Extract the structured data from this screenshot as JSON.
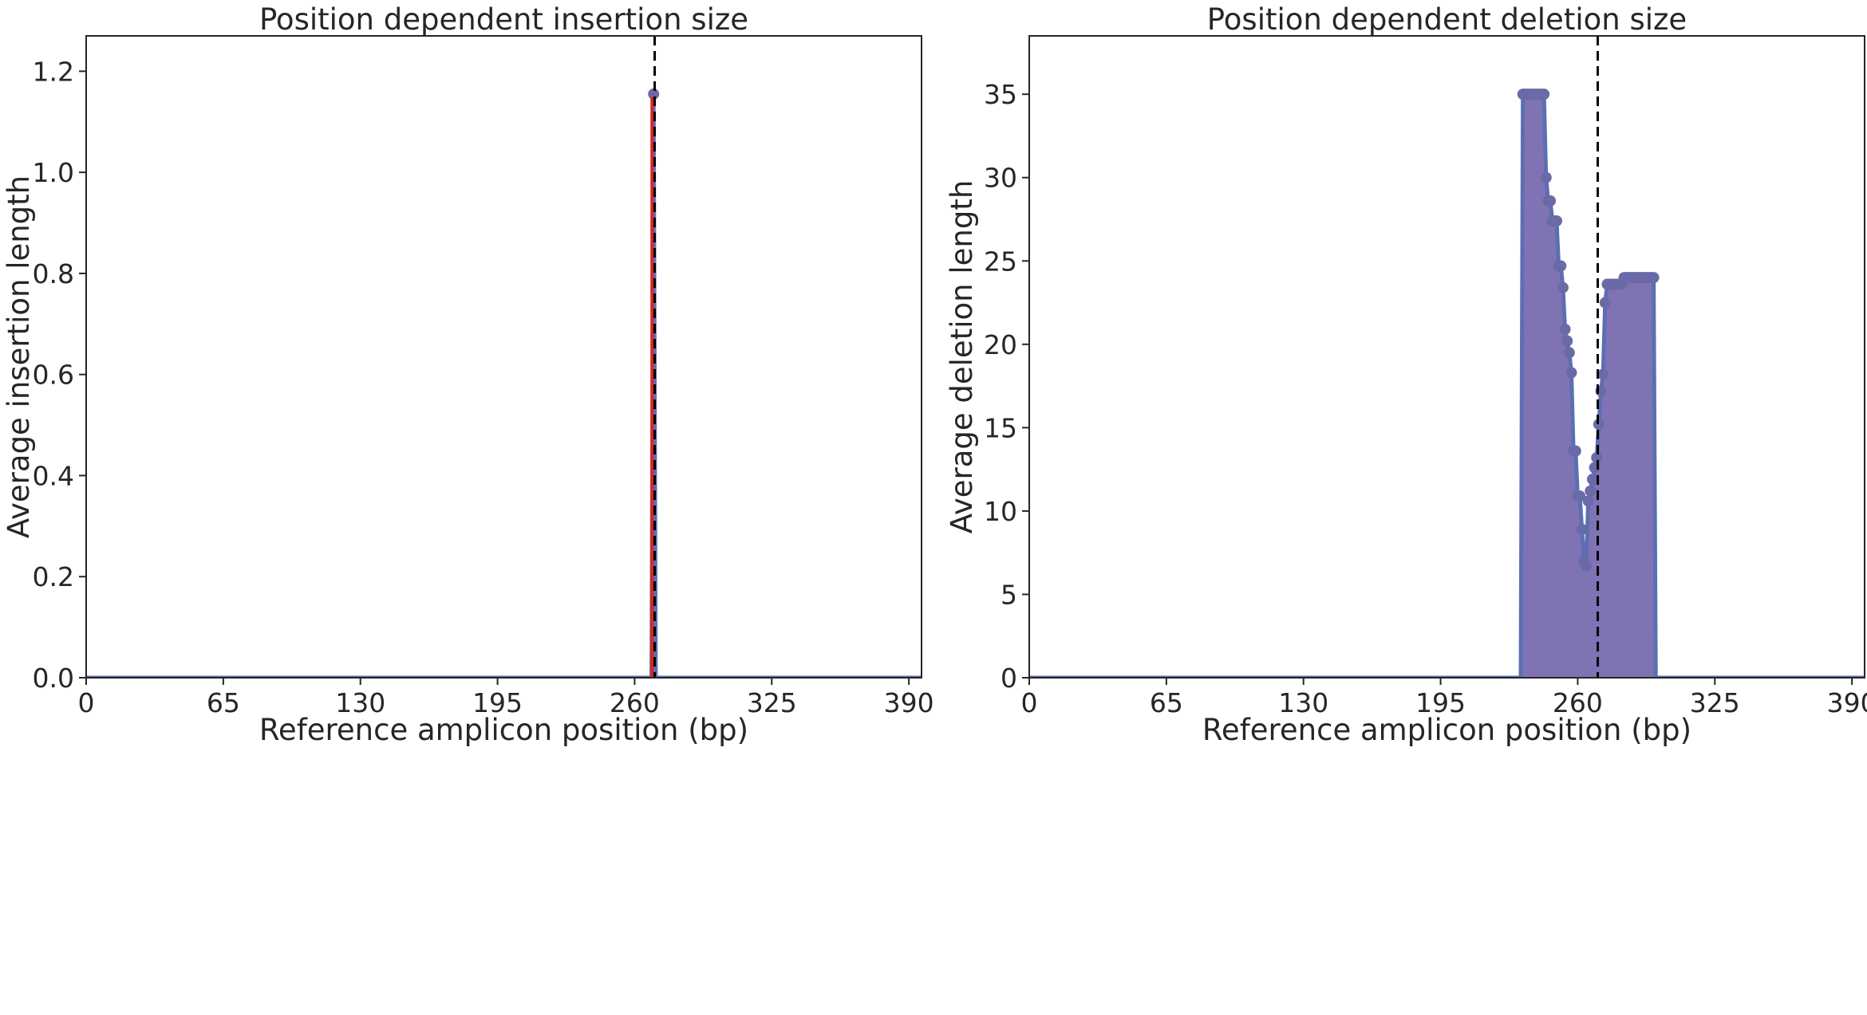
{
  "chart_data": [
    {
      "type": "line",
      "title": "Position dependent insertion size",
      "xlabel": "Reference amplicon position (bp)",
      "ylabel": "Average insertion length",
      "xlim": [
        0,
        396
      ],
      "ylim": [
        0,
        1.27
      ],
      "xticks": [
        0,
        65,
        130,
        195,
        260,
        325,
        390
      ],
      "xtick_labels": [
        "0",
        "65",
        "130",
        "195",
        "260",
        "325",
        "390"
      ],
      "yticks": [
        0.0,
        0.2,
        0.4,
        0.6,
        0.8,
        1.0,
        1.2
      ],
      "ytick_labels": [
        "0.0",
        "0.2",
        "0.4",
        "0.6",
        "0.8",
        "1.0",
        "1.2"
      ],
      "cut_site": 269.5,
      "grid": false,
      "colors": {
        "fill": "#8073b4",
        "line": "#5b6fb2",
        "marker": "#6a6aa8",
        "highlight": "#d62728",
        "cut_line": "#000000"
      },
      "series": [
        {
          "x": [
            0,
            268,
            269,
            270,
            396
          ],
          "y": [
            0,
            0,
            1.155,
            0,
            0
          ]
        }
      ]
    },
    {
      "type": "area",
      "title": "Position dependent deletion size",
      "xlabel": "Reference amplicon position (bp)",
      "ylabel": "Average deletion length",
      "xlim": [
        0,
        396
      ],
      "ylim": [
        0,
        38.5
      ],
      "xticks": [
        0,
        65,
        130,
        195,
        260,
        325,
        390
      ],
      "xtick_labels": [
        "0",
        "65",
        "130",
        "195",
        "260",
        "325",
        "390"
      ],
      "yticks": [
        0,
        5,
        10,
        15,
        20,
        25,
        30,
        35
      ],
      "ytick_labels": [
        "0",
        "5",
        "10",
        "15",
        "20",
        "25",
        "30",
        "35"
      ],
      "cut_site": 269.5,
      "grid": false,
      "colors": {
        "fill": "#8073b4",
        "line": "#5b6fb2",
        "marker": "#6a6aa8",
        "cut_line": "#000000"
      },
      "series": [
        {
          "x": [
            0,
            233,
            234,
            235,
            236,
            237,
            238,
            239,
            240,
            241,
            242,
            243,
            244,
            245,
            246,
            247,
            248,
            249,
            250,
            251,
            252,
            253,
            254,
            255,
            256,
            257,
            258,
            259,
            260,
            261,
            262,
            263,
            264,
            265,
            266,
            267,
            268,
            269,
            270,
            271,
            272,
            273,
            274,
            275,
            276,
            277,
            278,
            279,
            280,
            281,
            282,
            283,
            284,
            285,
            286,
            287,
            288,
            289,
            290,
            291,
            292,
            293,
            294,
            295,
            296,
            297,
            396
          ],
          "y": [
            0,
            0,
            35,
            35,
            35,
            35,
            35,
            35,
            35,
            35,
            35,
            35,
            35,
            30,
            28.6,
            28.6,
            27.4,
            27.4,
            27.4,
            24.7,
            24.7,
            23.4,
            20.9,
            20.2,
            19.5,
            18.3,
            13.6,
            13.6,
            10.9,
            10.9,
            8.9,
            7.0,
            6.7,
            10.6,
            11.2,
            11.9,
            12.6,
            13.2,
            15.2,
            17.2,
            18.2,
            22.5,
            23.6,
            23.6,
            23.6,
            23.6,
            23.6,
            23.6,
            23.6,
            23.6,
            24.0,
            24.0,
            24.0,
            24.0,
            24.0,
            24.0,
            24.0,
            24.0,
            24.0,
            24.0,
            24.0,
            24.0,
            24.0,
            24.0,
            24.0,
            0,
            0
          ]
        }
      ]
    }
  ]
}
